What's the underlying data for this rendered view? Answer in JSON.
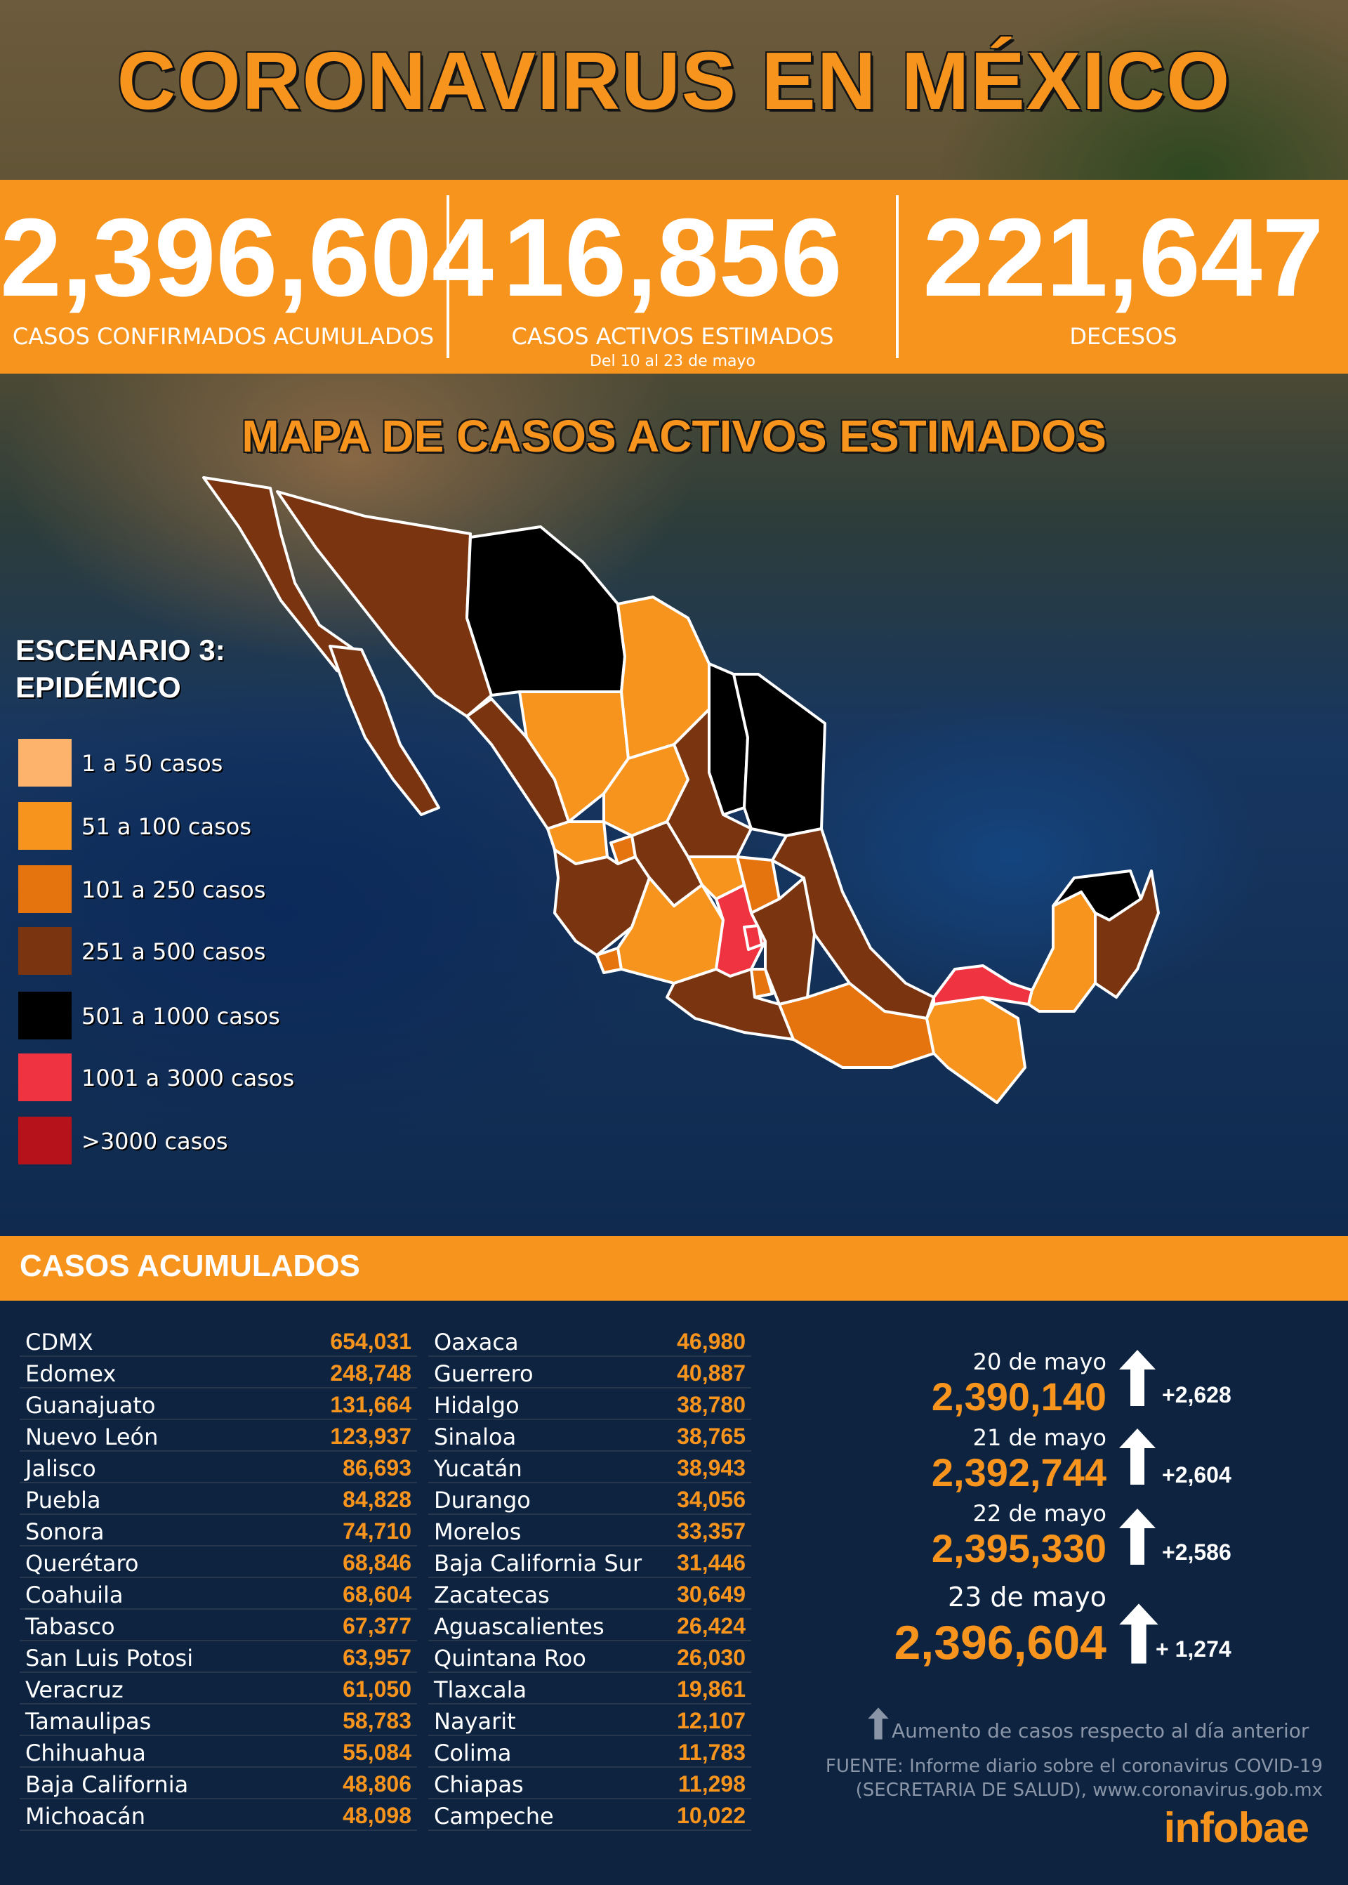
{
  "title": "CORONAVIRUS EN MÉXICO",
  "stats": {
    "confirmed": {
      "value": "2,396,604",
      "label": "CASOS CONFIRMADOS ACUMULADOS"
    },
    "active": {
      "value": "16,856",
      "label": "CASOS ACTIVOS ESTIMADOS",
      "sublabel": "Del 10 al 23 de mayo"
    },
    "deaths": {
      "value": "221,647",
      "label": "DECESOS"
    }
  },
  "map": {
    "title": "MAPA DE CASOS ACTIVOS ESTIMADOS",
    "legend_title_1": "ESCENARIO 3:",
    "legend_title_2": "EPIDÉMICO",
    "legend": [
      {
        "label": "1 a 50 casos",
        "color": "#fdb36b"
      },
      {
        "label": "51 a 100 casos",
        "color": "#f7941d"
      },
      {
        "label": "101 a 250 casos",
        "color": "#e6740e"
      },
      {
        "label": "251 a 500 casos",
        "color": "#7a3510"
      },
      {
        "label": "501 a 1000 casos",
        "color": "#000000"
      },
      {
        "label": "1001 a 3000 casos",
        "color": "#ef3340"
      },
      {
        "label": ">3000 casos",
        "color": "#b5121b"
      }
    ]
  },
  "accum_header": "CASOS ACUMULADOS",
  "table_left": [
    {
      "name": "CDMX",
      "value": "654,031"
    },
    {
      "name": "Edomex",
      "value": "248,748"
    },
    {
      "name": "Guanajuato",
      "value": "131,664"
    },
    {
      "name": "Nuevo León",
      "value": "123,937"
    },
    {
      "name": "Jalisco",
      "value": "86,693"
    },
    {
      "name": "Puebla",
      "value": "84,828"
    },
    {
      "name": "Sonora",
      "value": "74,710"
    },
    {
      "name": "Querétaro",
      "value": "68,846"
    },
    {
      "name": "Coahuila",
      "value": "68,604"
    },
    {
      "name": "Tabasco",
      "value": "67,377"
    },
    {
      "name": "San Luis Potosi",
      "value": "63,957"
    },
    {
      "name": "Veracruz",
      "value": "61,050"
    },
    {
      "name": "Tamaulipas",
      "value": "58,783"
    },
    {
      "name": "Chihuahua",
      "value": "55,084"
    },
    {
      "name": "Baja California",
      "value": "48,806"
    },
    {
      "name": "Michoacán",
      "value": "48,098"
    }
  ],
  "table_right": [
    {
      "name": "Oaxaca",
      "value": "46,980"
    },
    {
      "name": "Guerrero",
      "value": "40,887"
    },
    {
      "name": "Hidalgo",
      "value": "38,780"
    },
    {
      "name": "Sinaloa",
      "value": "38,765"
    },
    {
      "name": "Yucatán",
      "value": "38,943"
    },
    {
      "name": "Durango",
      "value": "34,056"
    },
    {
      "name": "Morelos",
      "value": "33,357"
    },
    {
      "name": "Baja California Sur",
      "value": "31,446"
    },
    {
      "name": "Zacatecas",
      "value": "30,649"
    },
    {
      "name": "Aguascalientes",
      "value": "26,424"
    },
    {
      "name": "Quintana Roo",
      "value": "26,030"
    },
    {
      "name": "Tlaxcala",
      "value": "19,861"
    },
    {
      "name": "Nayarit",
      "value": "12,107"
    },
    {
      "name": "Colima",
      "value": "11,783"
    },
    {
      "name": "Chiapas",
      "value": "11,298"
    },
    {
      "name": "Campeche",
      "value": "10,022"
    }
  ],
  "daily": [
    {
      "date": "20 de mayo",
      "total": "2,390,140",
      "increase": "+2,628"
    },
    {
      "date": "21 de mayo",
      "total": "2,392,744",
      "increase": "+2,604"
    },
    {
      "date": "22 de mayo",
      "total": "2,395,330",
      "increase": "+2,586"
    },
    {
      "date": "23 de mayo",
      "total": "2,396,604",
      "increase": "+ 1,274"
    }
  ],
  "note": "Aumento de casos respecto al día anterior",
  "source_1": "FUENTE:  Informe diario sobre el coronavirus COVID-19",
  "source_2": "(SECRETARIA DE SALUD), www.coronavirus.gob.mx",
  "brand": "infobae"
}
